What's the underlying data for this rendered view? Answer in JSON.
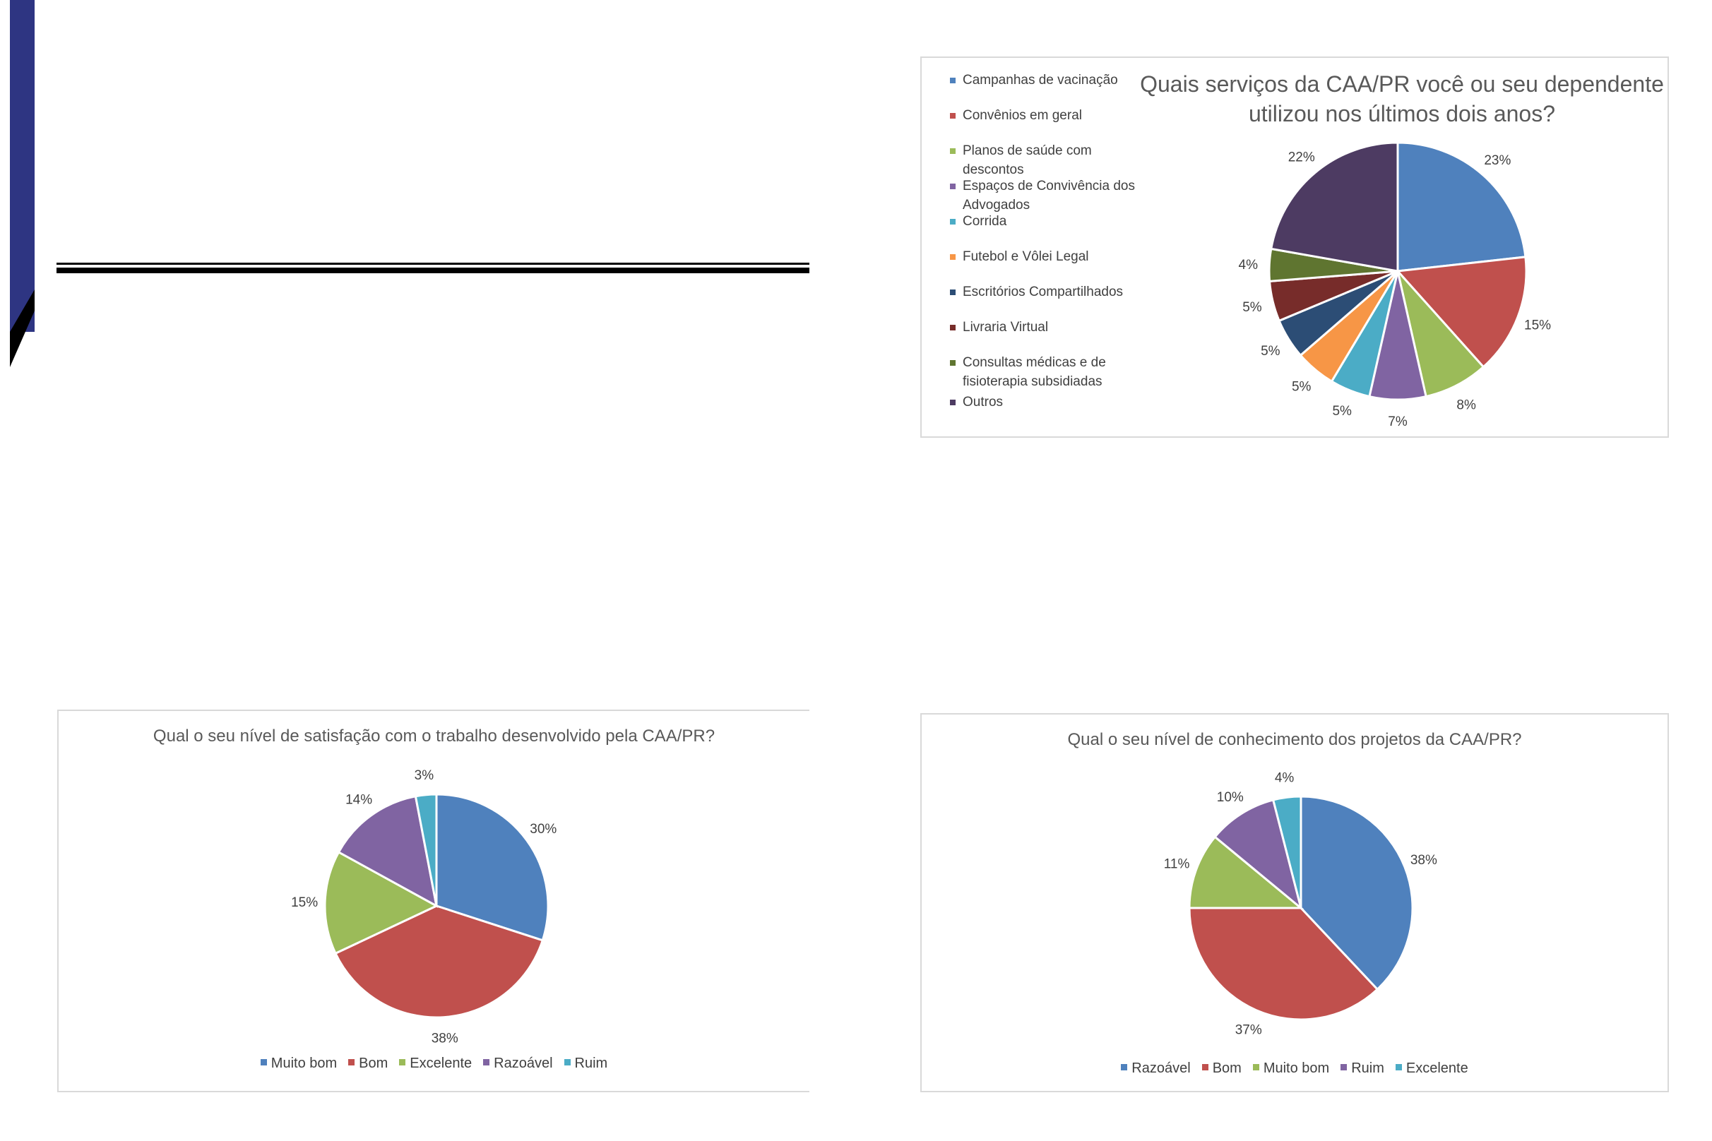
{
  "chart_data": [
    {
      "type": "pie",
      "title": "Quais serviços da CAA/PR você ou seu dependente utilizou nos últimos dois anos?",
      "categories": [
        "Campanhas de vacinação",
        "Convênios em geral",
        "Planos de saúde com descontos",
        "Espaços de Convivência dos Advogados",
        "Corrida",
        "Futebol e Vôlei Legal",
        "Escritórios Compartilhados",
        "Livraria Virtual",
        "Consultas médicas e de fisioterapia subsidiadas",
        "Outros"
      ],
      "values": [
        23,
        15,
        8,
        7,
        5,
        5,
        5,
        5,
        4,
        22
      ],
      "labels": [
        "23%",
        "15%",
        "8%",
        "7%",
        "5%",
        "5%",
        "5%",
        "5%",
        "4%",
        "22%"
      ],
      "colors": [
        "#4f81bd",
        "#c0504d",
        "#9bbb59",
        "#8064a2",
        "#4bacc6",
        "#f79646",
        "#2c4d75",
        "#772c2a",
        "#5f7530",
        "#4d3b62"
      ],
      "legend_position": "left"
    },
    {
      "type": "pie",
      "title": "Qual o seu nível de satisfação com o trabalho desenvolvido  pela CAA/PR?",
      "categories": [
        "Muito bom",
        "Bom",
        "Excelente",
        "Razoável",
        "Ruim"
      ],
      "values": [
        30,
        38,
        15,
        14,
        3
      ],
      "labels": [
        "30%",
        "38%",
        "15%",
        "14%",
        "3%"
      ],
      "colors": [
        "#4f81bd",
        "#c0504d",
        "#9bbb59",
        "#8064a2",
        "#4bacc6"
      ],
      "legend_position": "bottom"
    },
    {
      "type": "pie",
      "title": "Qual o seu nível de conhecimento dos projetos da CAA/PR?",
      "categories": [
        "Razoável",
        "Bom",
        "Muito bom",
        "Ruim",
        "Excelente"
      ],
      "values": [
        38,
        37,
        11,
        10,
        4
      ],
      "labels": [
        "38%",
        "37%",
        "11%",
        "10%",
        "4%"
      ],
      "colors": [
        "#4f81bd",
        "#c0504d",
        "#9bbb59",
        "#8064a2",
        "#4bacc6"
      ],
      "legend_position": "bottom"
    }
  ]
}
